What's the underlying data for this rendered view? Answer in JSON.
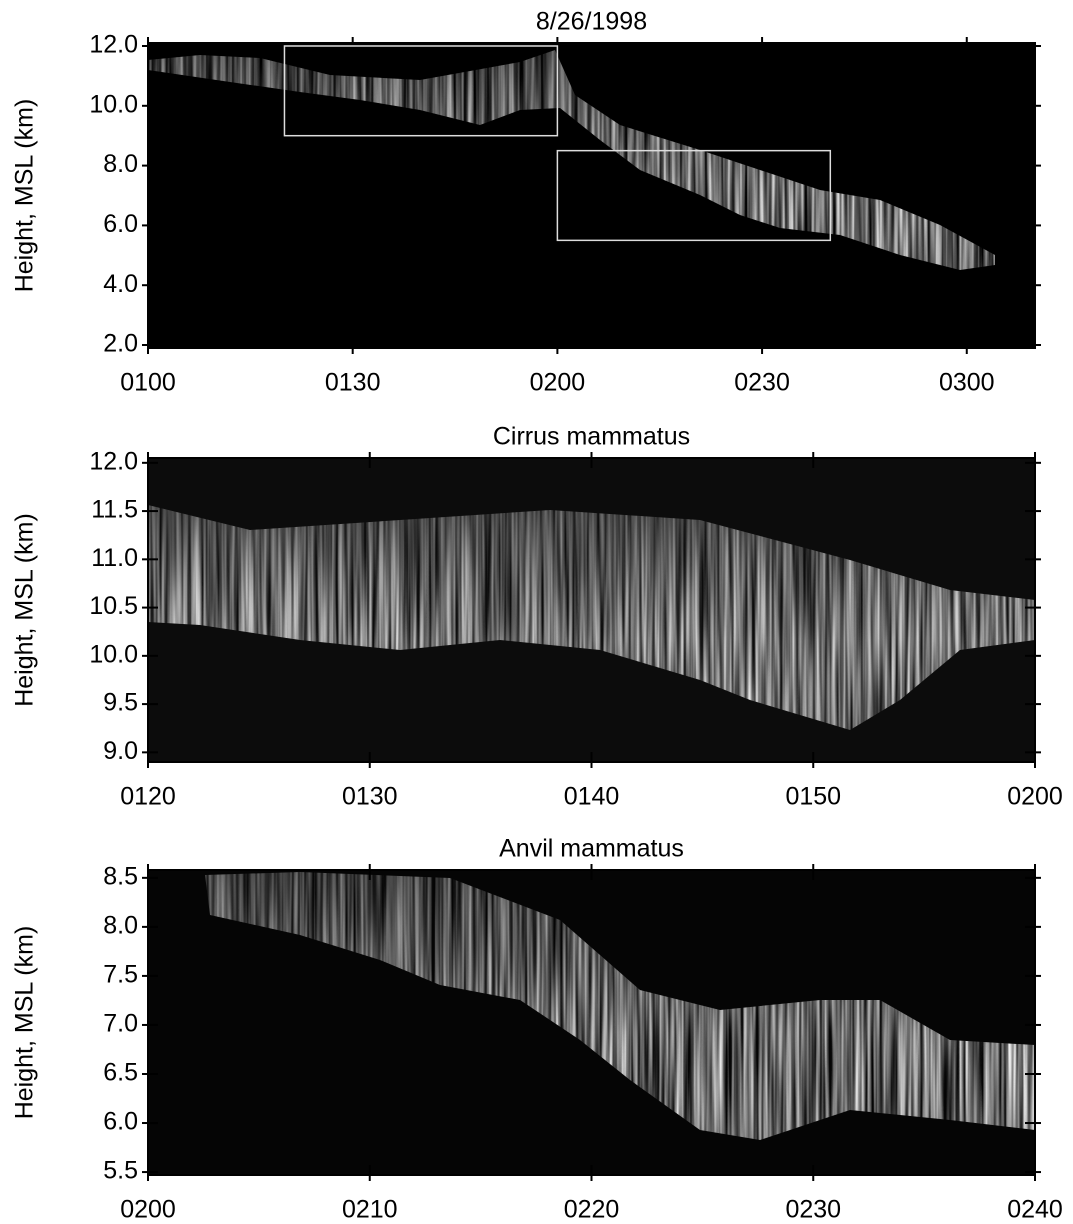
{
  "chart_data": [
    {
      "type": "heatmap",
      "title": "8/26/1998",
      "ylabel": "Height, MSL (km)",
      "xlim": [
        60,
        190
      ],
      "xticks": [
        {
          "value": 60,
          "label": "0100"
        },
        {
          "value": 90,
          "label": "0130"
        },
        {
          "value": 120,
          "label": "0200"
        },
        {
          "value": 150,
          "label": "0230"
        },
        {
          "value": 180,
          "label": "0300"
        }
      ],
      "ylim": [
        1.9,
        12.1
      ],
      "yticks": [
        {
          "value": 2,
          "label": "2.0"
        },
        {
          "value": 4,
          "label": "4.0"
        },
        {
          "value": 6,
          "label": "6.0"
        },
        {
          "value": 8,
          "label": "8.0"
        },
        {
          "value": 10,
          "label": "10.0"
        },
        {
          "value": 12,
          "label": "12.0"
        }
      ],
      "boxes": [
        {
          "xlim": [
            80,
            120
          ],
          "ylim": [
            9,
            12
          ]
        },
        {
          "xlim": [
            120,
            160
          ],
          "ylim": [
            5.5,
            8.5
          ]
        }
      ]
    },
    {
      "type": "heatmap",
      "title": "Cirrus mammatus",
      "ylabel": "Height, MSL (km)",
      "xlim": [
        80,
        120
      ],
      "xticks": [
        {
          "value": 80,
          "label": "0120"
        },
        {
          "value": 90,
          "label": "0130"
        },
        {
          "value": 100,
          "label": "0140"
        },
        {
          "value": 110,
          "label": "0150"
        },
        {
          "value": 120,
          "label": "0200"
        }
      ],
      "ylim": [
        8.9,
        12.05
      ],
      "yticks": [
        {
          "value": 9,
          "label": "9.0"
        },
        9.5,
        {
          "value": 10,
          "label": "10.0"
        },
        10.5,
        {
          "value": 11,
          "label": "11.0"
        },
        11.5,
        {
          "value": 12,
          "label": "12.0"
        }
      ]
    },
    {
      "type": "heatmap",
      "title": "Anvil mammatus",
      "ylabel": "Height, MSL (km)",
      "xlim": [
        120,
        160
      ],
      "xticks": [
        {
          "value": 120,
          "label": "0200"
        },
        {
          "value": 130,
          "label": "0210"
        },
        {
          "value": 140,
          "label": "0220"
        },
        {
          "value": 150,
          "label": "0230"
        },
        {
          "value": 160,
          "label": "0240"
        }
      ],
      "ylim": [
        5.47,
        8.58
      ],
      "yticks": [
        5.5,
        {
          "value": 6,
          "label": "6.0"
        },
        6.5,
        {
          "value": 7,
          "label": "7.0"
        },
        7.5,
        {
          "value": 8,
          "label": "8.0"
        },
        8.5
      ]
    }
  ]
}
